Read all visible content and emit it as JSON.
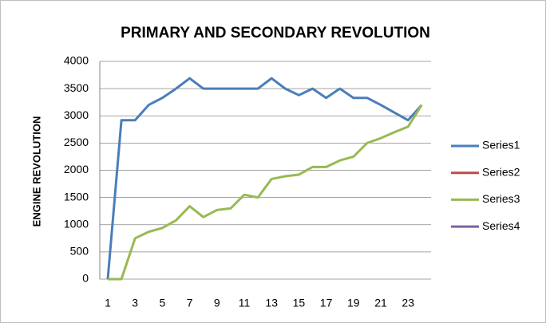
{
  "chart_data": {
    "type": "line",
    "title": "PRIMARY AND SECONDARY REVOLUTION",
    "y_label": "ENGINE REVOLUTION",
    "categories": [
      1,
      null,
      3,
      null,
      5,
      null,
      7,
      null,
      9,
      null,
      11,
      null,
      13,
      null,
      15,
      null,
      17,
      null,
      19,
      null,
      21,
      null,
      23,
      null
    ],
    "series": [
      {
        "name": "Series1",
        "color": "#4a7ebb",
        "values": [
          0,
          2920,
          2920,
          3200,
          3330,
          3500,
          3690,
          3500,
          3500,
          3500,
          3500,
          3500,
          3690,
          3500,
          3380,
          3500,
          3330,
          3500,
          3330,
          3330,
          3200,
          3060,
          2920,
          3200
        ]
      },
      {
        "name": "Series2",
        "color": "#be4b48",
        "values": [
          null,
          null,
          null,
          null,
          null,
          null,
          null,
          null,
          null,
          null,
          null,
          null,
          null,
          null,
          null,
          null,
          null,
          null,
          null,
          null,
          null,
          null,
          null,
          null
        ]
      },
      {
        "name": "Series3",
        "color": "#98b954",
        "values": [
          0,
          0,
          750,
          870,
          940,
          1080,
          1340,
          1140,
          1270,
          1300,
          1550,
          1500,
          1840,
          1890,
          1920,
          2060,
          2060,
          2180,
          2250,
          2500,
          2590,
          2700,
          2800,
          3200
        ]
      },
      {
        "name": "Series4",
        "color": "#7d60a0",
        "values": [
          null,
          null,
          null,
          null,
          null,
          null,
          null,
          null,
          null,
          null,
          null,
          null,
          null,
          null,
          null,
          null,
          null,
          null,
          null,
          null,
          null,
          null,
          null,
          null
        ]
      }
    ],
    "ylim": [
      0,
      4000
    ],
    "yticks": [
      0,
      500,
      1000,
      1500,
      2000,
      2500,
      3000,
      3500,
      4000
    ],
    "grid": true,
    "legend": "right"
  }
}
